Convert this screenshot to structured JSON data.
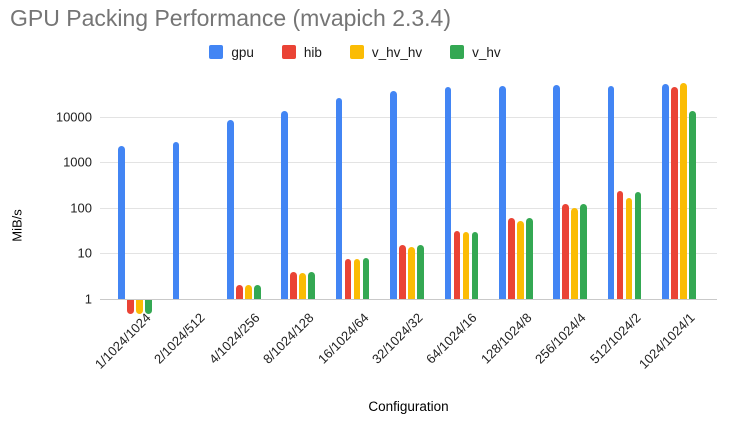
{
  "chart_data": {
    "type": "bar",
    "title": "GPU Packing Performance (mvapich 2.3.4)",
    "xlabel": "Configuration",
    "ylabel": "MiB/s",
    "y_scale": "log",
    "y_ticks": [
      1,
      10,
      100,
      1000,
      10000
    ],
    "ylim": [
      0.45,
      63000
    ],
    "grid": true,
    "legend_position": "top",
    "categories": [
      "1/1024/1024",
      "2/1024/512",
      "4/1024/256",
      "8/1024/128",
      "16/1024/64",
      "32/1024/32",
      "64/1024/16",
      "128/1024/8",
      "256/1024/4",
      "512/1024/2",
      "1024/1024/1"
    ],
    "series": [
      {
        "name": "gpu",
        "color": "#4285F4",
        "values": [
          2250,
          2750,
          8400,
          13500,
          25000,
          36000,
          44000,
          47500,
          48500,
          46000,
          52000
        ]
      },
      {
        "name": "hib",
        "color": "#EA4335",
        "values": [
          0.5,
          1,
          2,
          3.9,
          7.7,
          15,
          31,
          61,
          121,
          234,
          44000
        ]
      },
      {
        "name": "v_hv_hv",
        "color": "#FBBC04",
        "values": [
          0.5,
          1,
          2,
          3.8,
          7.6,
          14,
          29,
          52,
          99,
          161,
          55000
        ]
      },
      {
        "name": "v_hv",
        "color": "#34A853",
        "values": [
          0.5,
          1,
          2,
          4.0,
          7.9,
          15,
          30,
          59,
          120,
          219,
          13000
        ]
      }
    ]
  },
  "colors": {
    "title_text": "#757575",
    "axis_text": "#222222",
    "gridline": "#e3e3e3",
    "baseline": "#c9c9c9",
    "background": "#ffffff"
  }
}
